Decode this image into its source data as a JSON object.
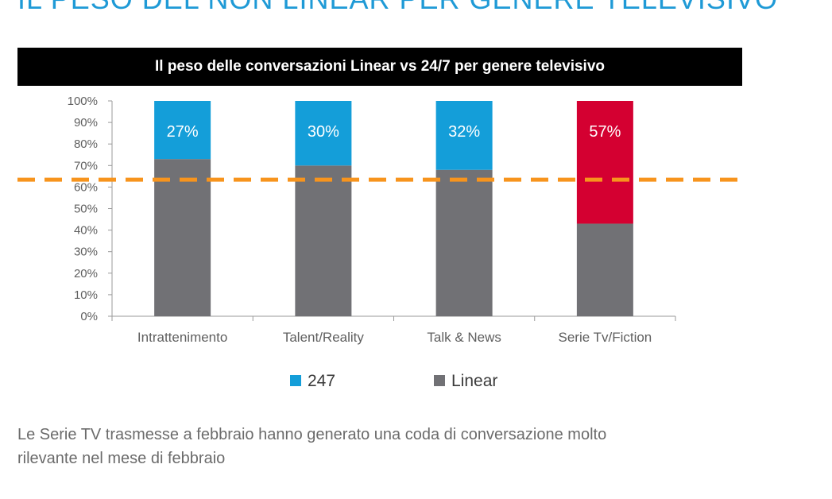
{
  "slide": {
    "title": "IL PESO DEL NON LINEAR PER GENERE TELEVISIVO"
  },
  "chart_data": {
    "type": "bar",
    "stacked": true,
    "normalized": true,
    "title": "Il peso delle conversazioni Linear vs 24/7 per genere televisivo",
    "categories": [
      "Intrattenimento",
      "Talent/Reality",
      "Talk & News",
      "Serie Tv/Fiction"
    ],
    "series": [
      {
        "name": "Linear",
        "values": [
          73,
          70,
          68,
          43
        ],
        "color": "#717175"
      },
      {
        "name": "247",
        "values": [
          27,
          30,
          32,
          57
        ],
        "color": "#149ed9",
        "data_labels": [
          "27%",
          "30%",
          "32%",
          "57%"
        ],
        "highlight_color": "#d40031"
      }
    ],
    "highlight_category": "Serie Tv/Fiction",
    "reference_line": {
      "value": 66,
      "color": "#f7941d",
      "style": "dashed"
    },
    "ylim": [
      0,
      100
    ],
    "yticks": [
      "0%",
      "10%",
      "20%",
      "30%",
      "40%",
      "50%",
      "60%",
      "70%",
      "80%",
      "90%",
      "100%"
    ],
    "legend": {
      "position": "bottom",
      "entries": [
        "247",
        "Linear"
      ]
    },
    "grid": false
  },
  "note": {
    "line1": "Le Serie TV trasmesse a febbraio hanno generato una coda di conversazione molto",
    "line2": "rilevante  nel mese di febbraio"
  },
  "colors": {
    "title_blue": "#1f9ad6",
    "text_gray": "#6b6b6b"
  }
}
